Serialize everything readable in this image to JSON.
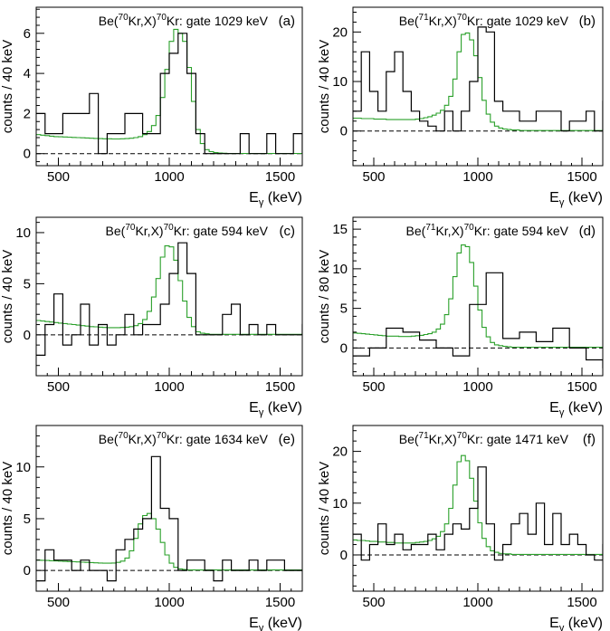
{
  "chart_data": [
    {
      "id": "a",
      "type": "histogram",
      "letter": "(a)",
      "title": {
        "pre": "Be(",
        "iso1": "70",
        "mid": "Kr,X)",
        "iso2": "70",
        "post": "Kr: gate 1029 keV"
      },
      "xlabel": {
        "main": "E",
        "sub": "γ",
        "unit": " (keV)"
      },
      "ylabel": "counts / 40 keV",
      "xlim": [
        400,
        1600
      ],
      "ylim": [
        -0.6,
        7.3
      ],
      "xticks": [
        500,
        1000,
        1500
      ],
      "yticks": [
        0,
        2,
        4,
        6
      ],
      "bin_start": 400,
      "bin_width": 40,
      "data": [
        2,
        1,
        1,
        2,
        2,
        2,
        3,
        0,
        1,
        1,
        2,
        2,
        1,
        1,
        4,
        5,
        6,
        4,
        1,
        0,
        0,
        0,
        0,
        1,
        0,
        0,
        1,
        0,
        0,
        1,
        0,
        0
      ],
      "sim_start": 400,
      "sim_width": 20,
      "sim": [
        0.95,
        0.92,
        0.9,
        0.87,
        0.85,
        0.84,
        0.83,
        0.82,
        0.81,
        0.8,
        0.79,
        0.78,
        0.77,
        0.76,
        0.75,
        0.74,
        0.74,
        0.73,
        0.73,
        0.74,
        0.75,
        0.77,
        0.8,
        0.85,
        0.95,
        1.1,
        1.4,
        1.9,
        2.8,
        4.2,
        5.6,
        6.2,
        6.0,
        5.6,
        4.3,
        2.6,
        1.2,
        0.5,
        0.2,
        0.1,
        0.05,
        0.03,
        0.02,
        0.01,
        0.01,
        0.01,
        0.01,
        0.01,
        0.01,
        0.01,
        0.01,
        0.01,
        0.01,
        0.01,
        0.01,
        0.01,
        0.01,
        0.01,
        0.01,
        0.01
      ]
    },
    {
      "id": "b",
      "type": "histogram",
      "letter": "(b)",
      "title": {
        "pre": "Be(",
        "iso1": "71",
        "mid": "Kr,X)",
        "iso2": "70",
        "post": "Kr: gate 1029 keV"
      },
      "xlabel": {
        "main": "E",
        "sub": "γ",
        "unit": " (keV)"
      },
      "ylabel": "counts / 40 keV",
      "xlim": [
        400,
        1600
      ],
      "ylim": [
        -7,
        25
      ],
      "xticks": [
        500,
        1000,
        1500
      ],
      "yticks": [
        0,
        10,
        20
      ],
      "bin_start": 400,
      "bin_width": 40,
      "data": [
        4,
        16,
        8,
        4,
        12,
        16,
        8,
        4,
        2,
        1,
        0,
        4,
        0,
        4,
        10,
        21,
        20,
        6,
        4,
        4,
        2,
        2,
        4,
        4,
        4,
        0,
        2,
        2,
        4,
        0,
        6,
        2,
        0,
        4,
        6,
        0
      ],
      "sim_start": 400,
      "sim_width": 20,
      "sim": [
        2.6,
        2.6,
        2.5,
        2.5,
        2.5,
        2.4,
        2.4,
        2.4,
        2.3,
        2.3,
        2.3,
        2.3,
        2.3,
        2.3,
        2.3,
        2.4,
        2.5,
        2.7,
        2.9,
        3.2,
        3.6,
        4.2,
        5.2,
        7.0,
        10.5,
        16,
        19.5,
        19.8,
        18.4,
        15.2,
        10.8,
        6.2,
        3.4,
        1.8,
        1.0,
        0.6,
        0.4,
        0.3,
        0.2,
        0.2,
        0.1,
        0.1,
        0.1,
        0.1,
        0.1,
        0.1,
        0.1,
        0.1,
        0.1,
        0.1,
        0.1,
        0.1,
        0.1,
        0.1,
        0.1,
        0.1,
        0.1,
        0.1,
        0.1,
        0.1
      ]
    },
    {
      "id": "c",
      "type": "histogram",
      "letter": "(c)",
      "title": {
        "pre": "Be(",
        "iso1": "70",
        "mid": "Kr,X)",
        "iso2": "70",
        "post": "Kr: gate  594 keV"
      },
      "xlabel": {
        "main": "E",
        "sub": "γ",
        "unit": " (keV)"
      },
      "ylabel": "counts / 40 keV",
      "xlim": [
        400,
        1600
      ],
      "ylim": [
        -4,
        11.5
      ],
      "xticks": [
        500,
        1000,
        1500
      ],
      "yticks": [
        0,
        5,
        10
      ],
      "bin_start": 400,
      "bin_width": 40,
      "data": [
        -2,
        1,
        4,
        -1,
        0,
        3,
        -1,
        1,
        -1,
        0,
        2,
        0,
        1,
        1,
        3,
        6,
        9,
        6,
        0,
        0,
        0,
        2,
        3,
        0,
        1,
        0,
        1,
        0,
        0,
        0,
        1,
        -1,
        0,
        0,
        1,
        0
      ],
      "sim_start": 400,
      "sim_width": 20,
      "sim": [
        1.4,
        1.35,
        1.3,
        1.25,
        1.2,
        1.15,
        1.1,
        1.05,
        1.0,
        0.95,
        0.9,
        0.85,
        0.8,
        0.78,
        0.75,
        0.72,
        0.7,
        0.7,
        0.7,
        0.72,
        0.75,
        0.8,
        0.9,
        1.1,
        1.5,
        2.3,
        3.7,
        5.5,
        7.6,
        8.7,
        8.6,
        7.3,
        5.3,
        3.3,
        1.7,
        0.8,
        0.3,
        0.15,
        0.1,
        0.05,
        0.05,
        0.05,
        0.05,
        0.05,
        0.05,
        0.05,
        0.05,
        0.05,
        0.05,
        0.05,
        0.05,
        0.05,
        0.05,
        0.05,
        0.05,
        0.05,
        0.05,
        0.05,
        0.05,
        0.05
      ]
    },
    {
      "id": "d",
      "type": "histogram",
      "letter": "(d)",
      "title": {
        "pre": "Be(",
        "iso1": "71",
        "mid": "Kr,X)",
        "iso2": "70",
        "post": "Kr: gate  594 keV"
      },
      "xlabel": {
        "main": "E",
        "sub": "γ",
        "unit": " (keV)"
      },
      "ylabel": "counts / 80 keV",
      "xlim": [
        400,
        1600
      ],
      "ylim": [
        -3.5,
        16.5
      ],
      "xticks": [
        500,
        1000,
        1500
      ],
      "yticks": [
        0,
        5,
        10,
        15
      ],
      "bin_start": 400,
      "bin_width": 80,
      "data": [
        -1,
        0,
        2.5,
        2,
        1,
        0,
        -1,
        5.5,
        9.5,
        1.2,
        2,
        0.8,
        2.5,
        0,
        -1.5,
        -2.5,
        2.5,
        1
      ],
      "sim_start": 400,
      "sim_width": 20,
      "sim": [
        1.9,
        1.85,
        1.8,
        1.75,
        1.7,
        1.65,
        1.6,
        1.55,
        1.5,
        1.5,
        1.5,
        1.45,
        1.45,
        1.45,
        1.5,
        1.55,
        1.6,
        1.7,
        1.8,
        2.0,
        2.4,
        3.0,
        4.2,
        6.2,
        9.0,
        12,
        13.0,
        12.8,
        10.8,
        7.8,
        4.8,
        2.6,
        1.4,
        0.7,
        0.4,
        0.3,
        0.2,
        0.15,
        0.1,
        0.1,
        0.1,
        0.1,
        0.1,
        0.1,
        0.1,
        0.1,
        0.1,
        0.1,
        0.1,
        0.1,
        0.1,
        0.1,
        0.1,
        0.1,
        0.1,
        0.1,
        0.1,
        0.1,
        0.1,
        0.1
      ]
    },
    {
      "id": "e",
      "type": "histogram",
      "letter": "(e)",
      "title": {
        "pre": "Be(",
        "iso1": "70",
        "mid": "Kr,X)",
        "iso2": "70",
        "post": "Kr: gate 1634 keV"
      },
      "xlabel": {
        "main": "E",
        "sub": "γ",
        "unit": " (keV)"
      },
      "ylabel": "counts / 40 keV",
      "xlim": [
        400,
        1600
      ],
      "ylim": [
        -2,
        14
      ],
      "xticks": [
        500,
        1000,
        1500
      ],
      "yticks": [
        0,
        5,
        10
      ],
      "bin_start": 400,
      "bin_width": 40,
      "data": [
        -1,
        2,
        1,
        1,
        0,
        1,
        0,
        0,
        -1,
        2,
        3,
        4,
        5,
        11,
        6,
        5,
        0,
        1,
        1,
        0,
        -1,
        1,
        0,
        0,
        1,
        0,
        1,
        1,
        0,
        0
      ],
      "sim_start": 400,
      "sim_width": 20,
      "sim": [
        1.0,
        0.98,
        0.96,
        0.94,
        0.92,
        0.9,
        0.88,
        0.86,
        0.84,
        0.82,
        0.8,
        0.78,
        0.76,
        0.74,
        0.72,
        0.7,
        0.7,
        0.72,
        0.78,
        0.9,
        1.2,
        1.9,
        3.1,
        4.5,
        5.3,
        5.5,
        5.0,
        4.0,
        2.7,
        1.5,
        0.7,
        0.3,
        0.15,
        0.1,
        0.05,
        0.05,
        0.05,
        0.05,
        0.05,
        0.05,
        0.05,
        0.05,
        0.05,
        0.05,
        0.05,
        0.05,
        0.05,
        0.05,
        0.05,
        0.05,
        0.05,
        0.05,
        0.05,
        0.05,
        0.05,
        0.05,
        0.05,
        0.05,
        0.05,
        0.05
      ]
    },
    {
      "id": "f",
      "type": "histogram",
      "letter": "(f)",
      "title": {
        "pre": "Be(",
        "iso1": "71",
        "mid": "Kr,X)",
        "iso2": "70",
        "post": "Kr: gate 1471 keV"
      },
      "xlabel": {
        "main": "E",
        "sub": "γ",
        "unit": " (keV)"
      },
      "ylabel": "counts / 40 keV",
      "xlim": [
        400,
        1600
      ],
      "ylim": [
        -7,
        25
      ],
      "xticks": [
        500,
        1000,
        1500
      ],
      "yticks": [
        0,
        10,
        20
      ],
      "bin_start": 400,
      "bin_width": 40,
      "data": [
        4,
        -1,
        2,
        6,
        2,
        4,
        1,
        2,
        2,
        4,
        1,
        4,
        6,
        5,
        9,
        17,
        6,
        -1,
        2,
        6,
        8,
        4,
        10,
        2,
        8,
        2,
        4,
        2,
        0,
        -1,
        2,
        0,
        -3,
        4,
        0,
        -5
      ],
      "sim_start": 400,
      "sim_width": 20,
      "sim": [
        2.9,
        2.8,
        2.8,
        2.7,
        2.6,
        2.6,
        2.5,
        2.5,
        2.4,
        2.4,
        2.3,
        2.3,
        2.3,
        2.3,
        2.3,
        2.4,
        2.5,
        2.6,
        2.8,
        3.1,
        3.6,
        4.5,
        6.0,
        9.0,
        13.5,
        18,
        19.2,
        18.2,
        14.8,
        10.4,
        6.2,
        3.2,
        1.6,
        0.8,
        0.5,
        0.3,
        0.2,
        0.2,
        0.1,
        0.1,
        0.1,
        0.1,
        0.1,
        0.1,
        0.1,
        0.1,
        0.1,
        0.1,
        0.1,
        0.1,
        0.1,
        0.1,
        0.1,
        0.1,
        0.1,
        0.1,
        0.1,
        0.1,
        0.1,
        0.1
      ]
    }
  ]
}
